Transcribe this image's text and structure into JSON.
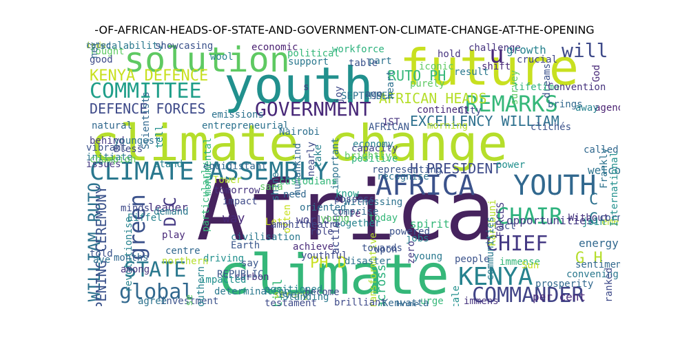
{
  "title": "-OF-AFRICAN-HEADS-OF-STATE-AND-GOVERNMENT-ON-CLIMATE-CHANGE-AT-THE-OPENING",
  "words": [
    {
      "text": "Africa",
      "color": "#46235e"
    },
    {
      "text": "climate change",
      "color": "#b5de2b"
    },
    {
      "text": "climate",
      "color": "#35b779"
    },
    {
      "text": "youth",
      "color": "#21908d"
    },
    {
      "text": "future",
      "color": "#c8e020"
    },
    {
      "text": "solution",
      "color": "#5ec962"
    },
    {
      "text": "CLIMATE ASSEMBLY",
      "color": "#2a788e"
    },
    {
      "text": "AFRICA",
      "color": "#3b528b"
    },
    {
      "text": "YOUTH",
      "color": "#31688e"
    },
    {
      "text": "GOVERNMENT",
      "color": "#482878"
    },
    {
      "text": "COMMITTEE",
      "color": "#1f9e89"
    },
    {
      "text": "REMARKS",
      "color": "#35b779"
    },
    {
      "text": "KENYA DEFENCE",
      "color": "#c8e020"
    },
    {
      "text": "DEFENCE FORCES",
      "color": "#3e4a89"
    },
    {
      "text": "EXCELLENCY WILLIAM",
      "color": "#2d708e"
    },
    {
      "text": "COMMANDER",
      "color": "#414487"
    },
    {
      "text": "KENYA",
      "color": "#26828e"
    },
    {
      "text": "CHIEF",
      "color": "#443983"
    },
    {
      "text": "CHAIR",
      "color": "#2db27d"
    },
    {
      "text": "H PRESIDENT",
      "color": "#3e4a89"
    },
    {
      "text": "STATE",
      "color": "#2a788e"
    },
    {
      "text": "global",
      "color": "#31688e"
    },
    {
      "text": "green",
      "color": "#3b528b"
    },
    {
      "text": "will",
      "color": "#3e4a89"
    },
    {
      "text": "u",
      "color": "#482878"
    },
    {
      "text": "WILLIAM RUTO",
      "color": "#2c728e"
    },
    {
      "text": "AFRICAN HEADS",
      "color": "#b5de2b"
    },
    {
      "text": "RUTO PH",
      "color": "#35b779"
    },
    {
      "text": "D C",
      "color": "#443983"
    },
    {
      "text": "PH D",
      "color": "#c8e020"
    },
    {
      "text": "G H",
      "color": "#b5de2b"
    },
    {
      "text": "OPENING CEREMONY",
      "color": "#3b528b"
    },
    {
      "text": "continent",
      "color": "#482878"
    },
    {
      "text": "opportunities",
      "color": "#443983"
    },
    {
      "text": "energy",
      "color": "#31688e"
    },
    {
      "text": "per cent",
      "color": "#482878"
    },
    {
      "text": "welcome",
      "color": "#2c728e"
    },
    {
      "text": "leader",
      "color": "#46337e"
    },
    {
      "text": "way",
      "color": "#482878"
    },
    {
      "text": "life",
      "color": "#481f70"
    },
    {
      "text": "world",
      "color": "#433e85"
    },
    {
      "text": "action",
      "color": "#3e4a89"
    },
    {
      "text": "young",
      "color": "#2a788e"
    },
    {
      "text": "people",
      "color": "#3b528b"
    },
    {
      "text": "potential",
      "color": "#35b779"
    },
    {
      "text": "across",
      "color": "#2db27d"
    },
    {
      "text": "C",
      "color": "#2d708e"
    },
    {
      "text": "G",
      "color": "#2a788e"
    },
    {
      "text": "challenge",
      "color": "#46337e"
    },
    {
      "text": "growth",
      "color": "#26828e"
    },
    {
      "text": "crucial",
      "color": "#414487"
    },
    {
      "text": "shift",
      "color": "#482878"
    },
    {
      "text": "AFRICAN",
      "color": "#39568c"
    },
    {
      "text": "entrepreneurial",
      "color": "#2c728e"
    },
    {
      "text": "natural",
      "color": "#31688e"
    },
    {
      "text": "Nairobi",
      "color": "#2d708e"
    },
    {
      "text": "economy",
      "color": "#26828e"
    },
    {
      "text": "capacity",
      "color": "#414487"
    },
    {
      "text": "positive",
      "color": "#2db27d"
    },
    {
      "text": "stand",
      "color": "#26828e"
    },
    {
      "text": "behind",
      "color": "#443983"
    },
    {
      "text": "demand",
      "color": "#2a788e"
    },
    {
      "text": "impact",
      "color": "#3e4a89"
    },
    {
      "text": "tomorrow",
      "color": "#46337e"
    },
    {
      "text": "need",
      "color": "#31688e"
    },
    {
      "text": "know",
      "color": "#1f9e89"
    },
    {
      "text": "fact",
      "color": "#3b528b"
    },
    {
      "text": "spirit",
      "color": "#35b779"
    },
    {
      "text": "role",
      "color": "#414487"
    },
    {
      "text": "achieve",
      "color": "#482878"
    },
    {
      "text": "youthful",
      "color": "#3e4a89"
    },
    {
      "text": "jobs",
      "color": "#26828e"
    },
    {
      "text": "play",
      "color": "#482878"
    },
    {
      "text": "centre",
      "color": "#31688e"
    },
    {
      "text": "driving",
      "color": "#21908d"
    },
    {
      "text": "say",
      "color": "#39568c"
    },
    {
      "text": "carbon",
      "color": "#46337e"
    },
    {
      "text": "investment",
      "color": "#3b528b"
    },
    {
      "text": "scale",
      "color": "#21908d"
    },
    {
      "text": "prosperity",
      "color": "#31688e"
    },
    {
      "text": "support",
      "color": "#2a788e"
    },
    {
      "text": "political",
      "color": "#35b779"
    },
    {
      "text": "workforce",
      "color": "#2db27d"
    },
    {
      "text": "economic",
      "color": "#481f70"
    },
    {
      "text": "part",
      "color": "#2c728e"
    },
    {
      "text": "Bless",
      "color": "#3e4a89"
    },
    {
      "text": "youngest",
      "color": "#2d708e"
    },
    {
      "text": "Let",
      "color": "#c8e020"
    },
    {
      "text": "Without",
      "color": "#46337e"
    },
    {
      "text": "emerging",
      "color": "#b5de2b"
    },
    {
      "text": "join",
      "color": "#21908d"
    },
    {
      "text": "corner",
      "color": "#39568c"
    },
    {
      "text": "called",
      "color": "#31688e"
    },
    {
      "text": "agenda",
      "color": "#481f70"
    },
    {
      "text": "God",
      "color": "#482878"
    },
    {
      "text": "dreams",
      "color": "#3b528b"
    },
    {
      "text": "lifetime",
      "color": "#2db27d"
    },
    {
      "text": "Convention",
      "color": "#46337e"
    },
    {
      "text": "survey",
      "color": "#5ec962"
    },
    {
      "text": "result",
      "color": "#2a788e"
    },
    {
      "text": "hold",
      "color": "#46337e"
    },
    {
      "text": "iconic",
      "color": "#5ec962"
    },
    {
      "text": "table",
      "color": "#3b528b"
    },
    {
      "text": "heart",
      "color": "#2d708e"
    },
    {
      "text": "purely",
      "color": "#5ec962"
    },
    {
      "text": "City",
      "color": "#3e4a89"
    },
    {
      "text": "brings",
      "color": "#31688e"
    },
    {
      "text": "clichés",
      "color": "#3b528b"
    },
    {
      "text": "away",
      "color": "#26828e"
    },
    {
      "text": "morning",
      "color": "#b5de2b"
    },
    {
      "text": "1ST",
      "color": "#46337e"
    },
    {
      "text": "emissions",
      "color": "#2c728e"
    },
    {
      "text": "Scientists",
      "color": "#31688e"
    },
    {
      "text": "fought",
      "color": "#5ec962"
    },
    {
      "text": "good",
      "color": "#3e4a89"
    },
    {
      "text": "net",
      "color": "#31688e"
    },
    {
      "text": "scalability",
      "color": "#2a788e"
    },
    {
      "text": "showcasing",
      "color": "#3b528b"
    },
    {
      "text": "wool",
      "color": "#26828e"
    },
    {
      "text": "tell",
      "color": "#21908d"
    },
    {
      "text": "monumental",
      "color": "#2db27d"
    },
    {
      "text": "particularly",
      "color": "#35b779"
    },
    {
      "text": "humankind",
      "color": "#31688e"
    },
    {
      "text": "nearly",
      "color": "#3e4a89"
    },
    {
      "text": "important",
      "color": "#2c728e"
    },
    {
      "text": "brightly",
      "color": "#5ec962"
    },
    {
      "text": "vibrant",
      "color": "#3b528b"
    },
    {
      "text": "initiate",
      "color": "#2a788e"
    },
    {
      "text": "issues",
      "color": "#443983"
    },
    {
      "text": "take",
      "color": "#26828e"
    },
    {
      "text": "representing",
      "color": "#39568c"
    },
    {
      "text": "recognise",
      "color": "#2d708e"
    },
    {
      "text": "equidistant",
      "color": "#31688e"
    },
    {
      "text": "Tower",
      "color": "#b5de2b"
    },
    {
      "text": "shine",
      "color": "#2a788e"
    },
    {
      "text": "custodians",
      "color": "#35b779"
    },
    {
      "text": "sana",
      "color": "#5ec962"
    },
    {
      "text": "minds",
      "color": "#3e4a89"
    },
    {
      "text": "Eiffel",
      "color": "#26828e"
    },
    {
      "text": "International",
      "color": "#21908d"
    },
    {
      "text": "Frankly",
      "color": "#2c728e"
    },
    {
      "text": "FORCES",
      "color": "#443983"
    },
    {
      "text": "Karibuni",
      "color": "#b5de2b"
    },
    {
      "text": "communities",
      "color": "#2a788e"
    },
    {
      "text": "powered",
      "color": "#3b528b"
    },
    {
      "text": "today",
      "color": "#35b779"
    },
    {
      "text": "Witnessing",
      "color": "#2c728e"
    },
    {
      "text": "possess",
      "color": "#3e4a89"
    },
    {
      "text": "comprise",
      "color": "#31688e"
    },
    {
      "text": "together",
      "color": "#26828e"
    },
    {
      "text": "young",
      "color": "#5ec962"
    },
    {
      "text": "oriented",
      "color": "#2d708e"
    },
    {
      "text": "often",
      "color": "#c8e020"
    },
    {
      "text": "Earth",
      "color": "#39568c"
    },
    {
      "text": "civilisation",
      "color": "#2a788e"
    },
    {
      "text": "revolutionise",
      "color": "#26828e"
    },
    {
      "text": "months",
      "color": "#31688e"
    },
    {
      "text": "told",
      "color": "#3b528b"
    },
    {
      "text": "ave",
      "color": "#2c728e"
    },
    {
      "text": "among",
      "color": "#46337e"
    },
    {
      "text": "northern",
      "color": "#b5de2b"
    },
    {
      "text": "southern",
      "color": "#26828e"
    },
    {
      "text": "amphitheatre",
      "color": "#3e4a89"
    },
    {
      "text": "impacted",
      "color": "#21908d"
    },
    {
      "text": "immense",
      "color": "#35b779"
    },
    {
      "text": "Sun",
      "color": "#c8e020"
    },
    {
      "text": "convening",
      "color": "#2a788e"
    },
    {
      "text": "sentiment",
      "color": "#31688e"
    },
    {
      "text": "ranked",
      "color": "#3e4a89"
    },
    {
      "text": "zero",
      "color": "#443983"
    },
    {
      "text": "transformative",
      "color": "#b5de2b"
    },
    {
      "text": "disaster",
      "color": "#2d708e"
    },
    {
      "text": "upon",
      "color": "#3b528b"
    },
    {
      "text": "REPUBLIC",
      "color": "#39568c"
    },
    {
      "text": "determination",
      "color": "#2a788e"
    },
    {
      "text": "positioned",
      "color": "#26828e"
    },
    {
      "text": "strong",
      "color": "#b5de2b"
    },
    {
      "text": "become",
      "color": "#3e4a89"
    },
    {
      "text": "Home",
      "color": "#31688e"
    },
    {
      "text": "urge",
      "color": "#35b779"
    },
    {
      "text": "maximise",
      "color": "#5ec962"
    },
    {
      "text": "agree",
      "color": "#2c728e"
    },
    {
      "text": "testament",
      "color": "#3e4a89"
    },
    {
      "text": "Standing",
      "color": "#2a788e"
    },
    {
      "text": "brilliant",
      "color": "#3e4a89"
    },
    {
      "text": "Kenyatta",
      "color": "#31688e"
    },
    {
      "text": "immens",
      "color": "#46337e"
    },
    {
      "text": "every",
      "color": "#2d708e"
    },
    {
      "text": "towards",
      "color": "#3b528b"
    },
    {
      "text": "s",
      "color": "#443983"
    },
    {
      "text": "joy",
      "color": "#3e4a89"
    },
    {
      "text": "SEPTEMBER",
      "color": "#2c728e"
    },
    {
      "text": "ago",
      "color": "#3b528b"
    },
    {
      "text": "champion",
      "color": "#5ec962"
    },
    {
      "text": "power",
      "color": "#21908d"
    },
    {
      "text": "top",
      "color": "#2a788e"
    },
    {
      "text": "indu",
      "color": "#c8e020"
    },
    {
      "text": "cated",
      "color": "#31688e"
    }
  ]
}
